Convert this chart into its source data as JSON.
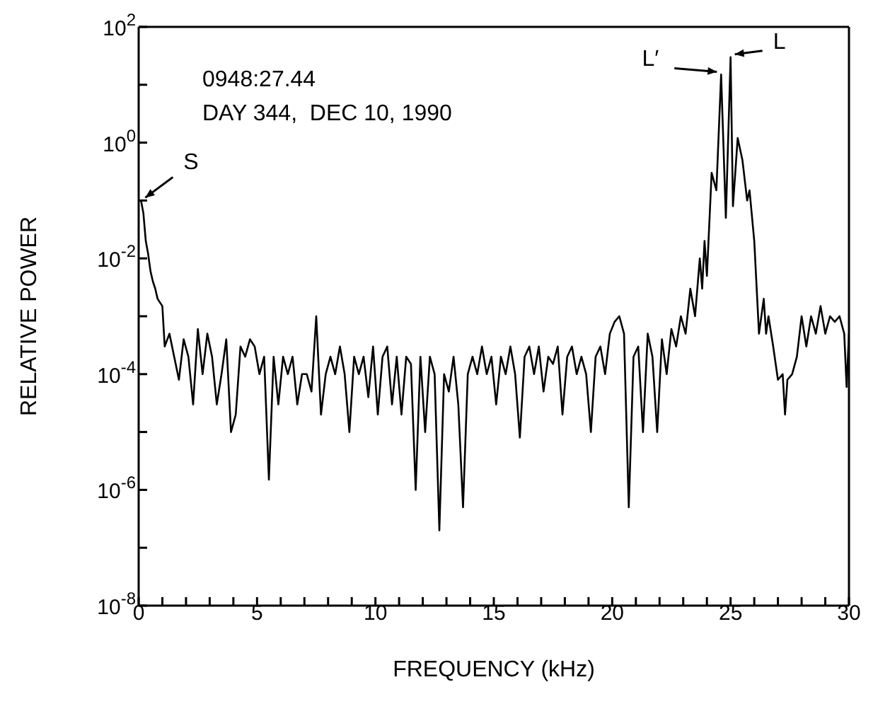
{
  "chart_data": {
    "type": "line",
    "xlabel": "FREQUENCY (kHz)",
    "ylabel": "RELATIVE POWER",
    "log": "y",
    "marker": "none",
    "line_style": "solid",
    "xlim": [
      0,
      30
    ],
    "xticks": [
      0,
      {
        "value": 1,
        "label": null
      },
      {
        "value": 2,
        "label": null
      },
      {
        "value": 3,
        "label": null
      },
      {
        "value": 4,
        "label": null
      },
      5,
      {
        "value": 6,
        "label": null
      },
      {
        "value": 7,
        "label": null
      },
      {
        "value": 8,
        "label": null
      },
      {
        "value": 9,
        "label": null
      },
      10,
      {
        "value": 11,
        "label": null
      },
      {
        "value": 12,
        "label": null
      },
      {
        "value": 13,
        "label": null
      },
      {
        "value": 14,
        "label": null
      },
      15,
      {
        "value": 16,
        "label": null
      },
      {
        "value": 17,
        "label": null
      },
      {
        "value": 18,
        "label": null
      },
      {
        "value": 19,
        "label": null
      },
      20,
      {
        "value": 21,
        "label": null
      },
      {
        "value": 22,
        "label": null
      },
      {
        "value": 23,
        "label": null
      },
      {
        "value": 24,
        "label": null
      },
      25,
      {
        "value": 26,
        "label": null
      },
      {
        "value": 27,
        "label": null
      },
      {
        "value": 28,
        "label": null
      },
      {
        "value": 29,
        "label": null
      },
      30
    ],
    "ylim": [
      1e-08,
      100
    ],
    "yticks": [
      {
        "value": 1e-08,
        "label": "10$^{-8}$"
      },
      {
        "value": 1e-07,
        "label": null
      },
      {
        "value": 1e-06,
        "label": "10$^{-6}$"
      },
      {
        "value": 1e-05,
        "label": null
      },
      {
        "value": 0.0001,
        "label": "10$^{-4}$"
      },
      {
        "value": 0.001,
        "label": null
      },
      {
        "value": 0.01,
        "label": "10$^{-2}$"
      },
      {
        "value": 0.1,
        "label": null
      },
      {
        "value": 1,
        "label": "10$^{0}$"
      },
      {
        "value": 10,
        "label": null
      },
      {
        "value": 100,
        "label": "10$^{2}$"
      }
    ],
    "annotations": [
      "0948:27.44",
      "DAY 344,  DEC 10, 1990",
      {
        "text": "S",
        "x": 0.1,
        "y": 0.1
      },
      {
        "text": "L′",
        "x": 24.6,
        "y": 15
      },
      {
        "text": "L",
        "x": 25,
        "y": 30
      }
    ],
    "series": [
      {
        "color": "#000000",
        "x": [
          0.1,
          0.2,
          0.3,
          0.4,
          0.5,
          0.6,
          0.7,
          0.8,
          1.0,
          1.1,
          1.3,
          1.5,
          1.7,
          1.9,
          2.1,
          2.3,
          2.5,
          2.7,
          2.9,
          3.1,
          3.3,
          3.5,
          3.7,
          3.9,
          4.1,
          4.3,
          4.5,
          4.7,
          4.9,
          5.1,
          5.3,
          5.5,
          5.7,
          5.9,
          6.1,
          6.3,
          6.5,
          6.7,
          6.9,
          7.1,
          7.3,
          7.5,
          7.7,
          7.9,
          8.1,
          8.3,
          8.5,
          8.7,
          8.9,
          9.1,
          9.3,
          9.5,
          9.7,
          9.9,
          10.1,
          10.3,
          10.5,
          10.7,
          10.9,
          11.1,
          11.3,
          11.5,
          11.7,
          11.9,
          12.1,
          12.3,
          12.5,
          12.7,
          12.9,
          13.1,
          13.3,
          13.5,
          13.7,
          13.9,
          14.1,
          14.3,
          14.5,
          14.7,
          14.9,
          15.1,
          15.3,
          15.5,
          15.7,
          15.9,
          16.1,
          16.3,
          16.5,
          16.7,
          16.9,
          17.1,
          17.3,
          17.5,
          17.7,
          17.9,
          18.1,
          18.3,
          18.5,
          18.7,
          18.9,
          19.1,
          19.3,
          19.5,
          19.7,
          19.9,
          20.1,
          20.3,
          20.5,
          20.7,
          20.9,
          21.1,
          21.3,
          21.5,
          21.7,
          21.9,
          22.1,
          22.3,
          22.5,
          22.7,
          22.9,
          23.1,
          23.3,
          23.5,
          23.7,
          23.8,
          23.9,
          24.0,
          24.2,
          24.4,
          24.6,
          24.8,
          25.0,
          25.1,
          25.3,
          25.5,
          25.7,
          25.8,
          26.0,
          26.2,
          26.4,
          26.5,
          26.6,
          26.8,
          27.0,
          27.2,
          27.3,
          27.4,
          27.6,
          27.8,
          28.0,
          28.2,
          28.4,
          28.6,
          28.8,
          29.0,
          29.2,
          29.4,
          29.6,
          29.8,
          29.9,
          30.0
        ],
        "values": [
          0.1,
          0.06,
          0.02,
          0.012,
          0.006,
          0.004,
          0.003,
          0.002,
          0.0015,
          0.0003,
          0.0005,
          0.0002,
          8e-05,
          0.0004,
          0.0002,
          3e-05,
          0.0006,
          0.0001,
          0.0005,
          0.0002,
          3e-05,
          0.0001,
          0.0004,
          1e-05,
          2e-05,
          0.0003,
          0.0002,
          0.0004,
          0.0003,
          0.0001,
          0.0002,
          1.5e-06,
          0.0002,
          3e-05,
          0.0002,
          0.0001,
          0.0002,
          3e-05,
          0.0001,
          0.0001,
          5e-05,
          0.001,
          2e-05,
          0.0001,
          0.0002,
          0.0001,
          0.0003,
          0.0001,
          1e-05,
          0.0002,
          0.0001,
          0.0002,
          4e-05,
          0.0003,
          2e-05,
          0.0002,
          0.0003,
          3e-05,
          0.0002,
          2e-05,
          0.0002,
          0.00015,
          1e-06,
          0.0002,
          1e-05,
          0.0002,
          0.0001,
          2e-07,
          0.0001,
          5e-05,
          0.0002,
          3e-05,
          5e-07,
          0.0001,
          0.0002,
          0.0001,
          0.0003,
          0.0001,
          0.0002,
          3e-05,
          0.0002,
          0.0001,
          0.0003,
          0.0001,
          8e-06,
          0.0002,
          0.0003,
          0.0001,
          0.0003,
          5e-05,
          0.0002,
          0.00015,
          0.0003,
          2e-05,
          0.0002,
          0.0003,
          0.0001,
          0.0002,
          0.0001,
          1e-05,
          0.0002,
          0.0003,
          0.0001,
          0.0005,
          0.0008,
          0.001,
          0.0005,
          5e-07,
          0.0002,
          0.0003,
          1e-05,
          0.0005,
          0.0002,
          1e-05,
          0.0004,
          0.0001,
          0.0006,
          0.0003,
          0.001,
          0.0005,
          0.003,
          0.001,
          0.01,
          0.003,
          0.02,
          0.005,
          0.3,
          0.15,
          15,
          0.05,
          30,
          0.08,
          1.2,
          0.5,
          0.1,
          0.15,
          0.02,
          0.0005,
          0.002,
          0.0005,
          0.001,
          0.0003,
          8e-05,
          0.0001,
          2e-05,
          8e-05,
          0.0001,
          0.0002,
          0.001,
          0.0003,
          0.001,
          0.0005,
          0.0015,
          0.0005,
          0.001,
          0.0008,
          0.001,
          0.0005,
          6e-05,
          0.0005
        ]
      }
    ]
  }
}
